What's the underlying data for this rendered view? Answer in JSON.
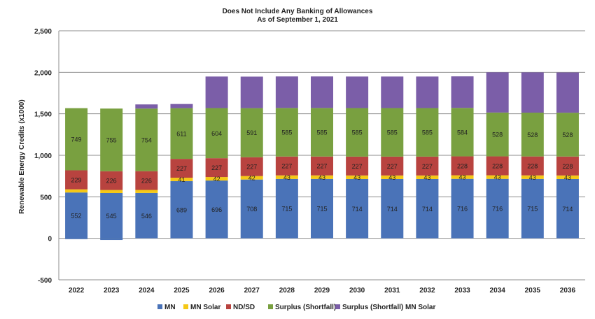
{
  "chart_data": {
    "type": "bar",
    "stacked": true,
    "title": "Does Not Include Any Banking of Allowances",
    "subtitle": "As of September 1, 2021",
    "ylabel": "Renewable Energy Credits  (x1000)",
    "xlabel": "",
    "ylim": [
      -500,
      2500
    ],
    "yticks": [
      "-500",
      "0",
      "500",
      "1,000",
      "1,500",
      "2,000",
      "2,500"
    ],
    "grid": true,
    "legend_position": "bottom",
    "categories": [
      "2022",
      "2023",
      "2024",
      "2025",
      "2026",
      "2027",
      "2028",
      "2029",
      "2030",
      "2031",
      "2032",
      "2033",
      "2034",
      "2035",
      "2036"
    ],
    "series": [
      {
        "name": "MN",
        "color": "#4a73b8",
        "values": [
          552,
          545,
          546,
          689,
          696,
          708,
          715,
          715,
          714,
          714,
          714,
          716,
          716,
          715,
          714
        ],
        "labels": [
          "552",
          "545",
          "546",
          "689",
          "696",
          "708",
          "715",
          "715",
          "714",
          "714",
          "714",
          "716",
          "716",
          "715",
          "714"
        ]
      },
      {
        "name": "MN Solar",
        "color": "#f5c816",
        "values": [
          38,
          37,
          37,
          41,
          42,
          42,
          43,
          43,
          43,
          43,
          43,
          43,
          43,
          43,
          43
        ],
        "labels": [
          "",
          "",
          "",
          "41",
          "42",
          "42",
          "43",
          "43",
          "43",
          "43",
          "43",
          "43",
          "43",
          "43",
          "43"
        ]
      },
      {
        "name": "ND/SD",
        "color": "#b8433f",
        "values": [
          229,
          226,
          226,
          227,
          227,
          227,
          227,
          227,
          227,
          227,
          227,
          228,
          228,
          228,
          228
        ],
        "labels": [
          "229",
          "226",
          "226",
          "227",
          "227",
          "227",
          "227",
          "227",
          "227",
          "227",
          "227",
          "228",
          "228",
          "228",
          "228"
        ]
      },
      {
        "name": "Surplus (Shortfall)",
        "color": "#79a040",
        "values": [
          749,
          755,
          754,
          611,
          604,
          591,
          585,
          585,
          585,
          585,
          585,
          584,
          528,
          528,
          528
        ],
        "labels": [
          "749",
          "755",
          "754",
          "611",
          "604",
          "591",
          "585",
          "585",
          "585",
          "585",
          "585",
          "584",
          "528",
          "528",
          "528"
        ]
      },
      {
        "name": "Surplus (Shortfall) MN Solar",
        "color": "#7b5ea8",
        "values": [
          0,
          0,
          50,
          50,
          380,
          380,
          380,
          380,
          380,
          380,
          380,
          380,
          485,
          485,
          485
        ],
        "labels": [
          "",
          "",
          "",
          "",
          "",
          "",
          "",
          "",
          "",
          "",
          "",
          "",
          "",
          "",
          ""
        ]
      }
    ],
    "below_zero": [
      -10,
      -20,
      0,
      0,
      0,
      0,
      0,
      0,
      0,
      0,
      0,
      0,
      0,
      0,
      0
    ]
  }
}
